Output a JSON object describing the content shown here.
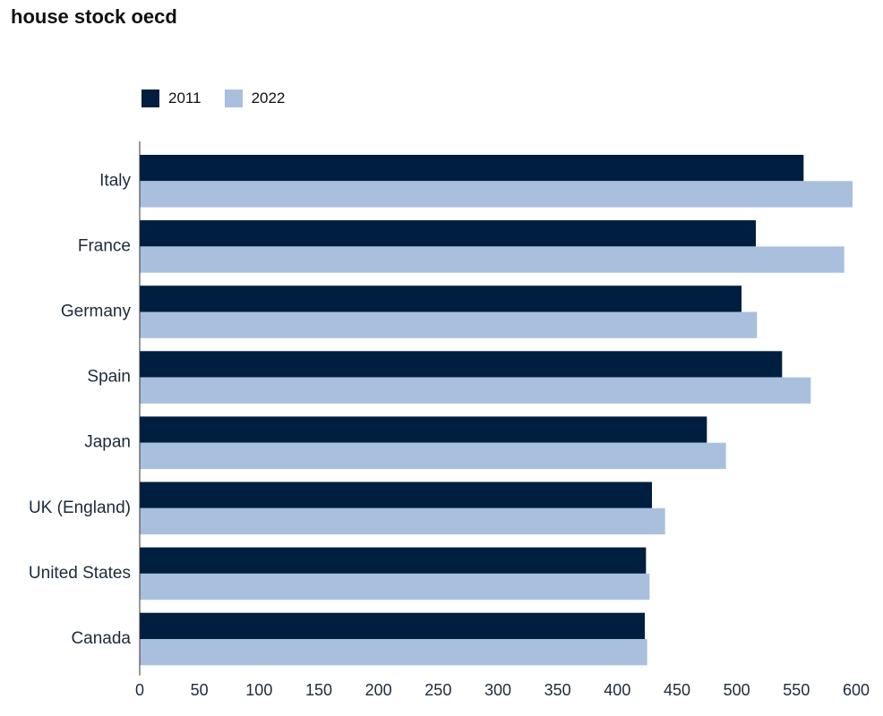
{
  "title": "house stock oecd",
  "colors": {
    "s2011": "#001e3f",
    "s2022": "#a9bfde"
  },
  "chart_data": {
    "type": "bar",
    "orientation": "horizontal",
    "title": "house stock oecd",
    "xlabel": "",
    "ylabel": "",
    "categories": [
      "Italy",
      "France",
      "Germany",
      "Spain",
      "Japan",
      "UK (England)",
      "United States",
      "Canada"
    ],
    "series": [
      {
        "name": "2011",
        "values": [
          556,
          516,
          504,
          538,
          475,
          429,
          424,
          423
        ]
      },
      {
        "name": "2022",
        "values": [
          597,
          590,
          517,
          562,
          491,
          440,
          427,
          425
        ]
      }
    ],
    "xlim": [
      0,
      600
    ],
    "xticks": [
      "0",
      "50",
      "100",
      "150",
      "200",
      "250",
      "300",
      "350",
      "400",
      "450",
      "500",
      "550",
      "600"
    ],
    "legend_position": "top-left",
    "grid": false
  }
}
